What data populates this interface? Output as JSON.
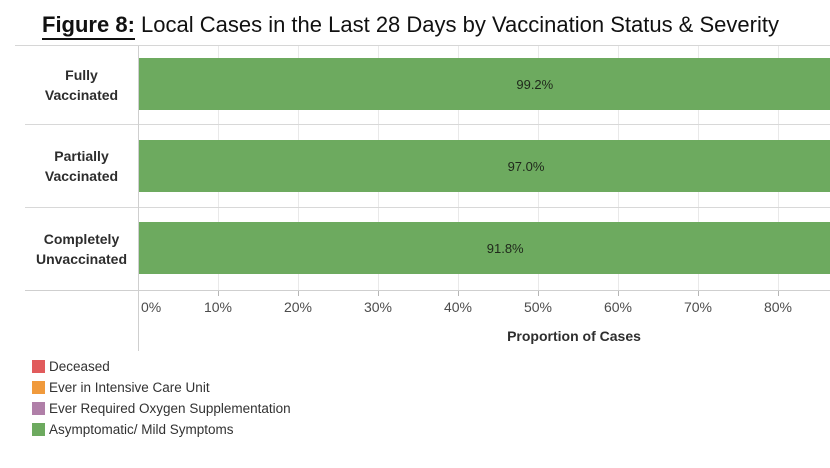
{
  "title": {
    "prefix": "Figure 8:",
    "text": " Local Cases in the Last 28 Days by Vaccination Status & Severity"
  },
  "chart": {
    "rows": [
      {
        "label_line1": "Fully",
        "label_line2": "Vaccinated",
        "value_label": "99.2%"
      },
      {
        "label_line1": "Partially",
        "label_line2": "Vaccinated",
        "value_label": "97.0%"
      },
      {
        "label_line1": "Completely",
        "label_line2": "Unvaccinated",
        "value_label": "91.8%"
      }
    ],
    "x_axis": {
      "ticks": [
        "0%",
        "10%",
        "20%",
        "30%",
        "40%",
        "50%",
        "60%",
        "70%",
        "80%"
      ],
      "title": "Proportion of Cases"
    }
  },
  "legend": {
    "items": [
      {
        "label": "Deceased",
        "color": "#e15b5c"
      },
      {
        "label": "Ever in Intensive Care Unit",
        "color": "#f09a3c"
      },
      {
        "label": "Ever Required Oxygen Supplementation",
        "color": "#b07fa8"
      },
      {
        "label": "Asymptomatic/ Mild Symptoms",
        "color": "#6daa5f"
      }
    ]
  },
  "chart_data": {
    "type": "bar",
    "orientation": "horizontal",
    "stacked": true,
    "title": "Figure 8: Local Cases in the Last 28 Days by Vaccination Status & Severity",
    "categories": [
      "Fully Vaccinated",
      "Partially Vaccinated",
      "Completely Unvaccinated"
    ],
    "series": [
      {
        "name": "Asymptomatic/ Mild Symptoms",
        "values": [
          99.2,
          97.0,
          91.8
        ],
        "color": "#6daa5f"
      }
    ],
    "legend_entries": [
      "Deceased",
      "Ever in Intensive Care Unit",
      "Ever Required Oxygen Supplementation",
      "Asymptomatic/ Mild Symptoms"
    ],
    "xlabel": "Proportion of Cases",
    "x_ticks_percent": [
      0,
      10,
      20,
      30,
      40,
      50,
      60,
      70,
      80
    ],
    "xlim_visible": [
      0,
      86.5
    ],
    "grid": "vertical-light"
  }
}
